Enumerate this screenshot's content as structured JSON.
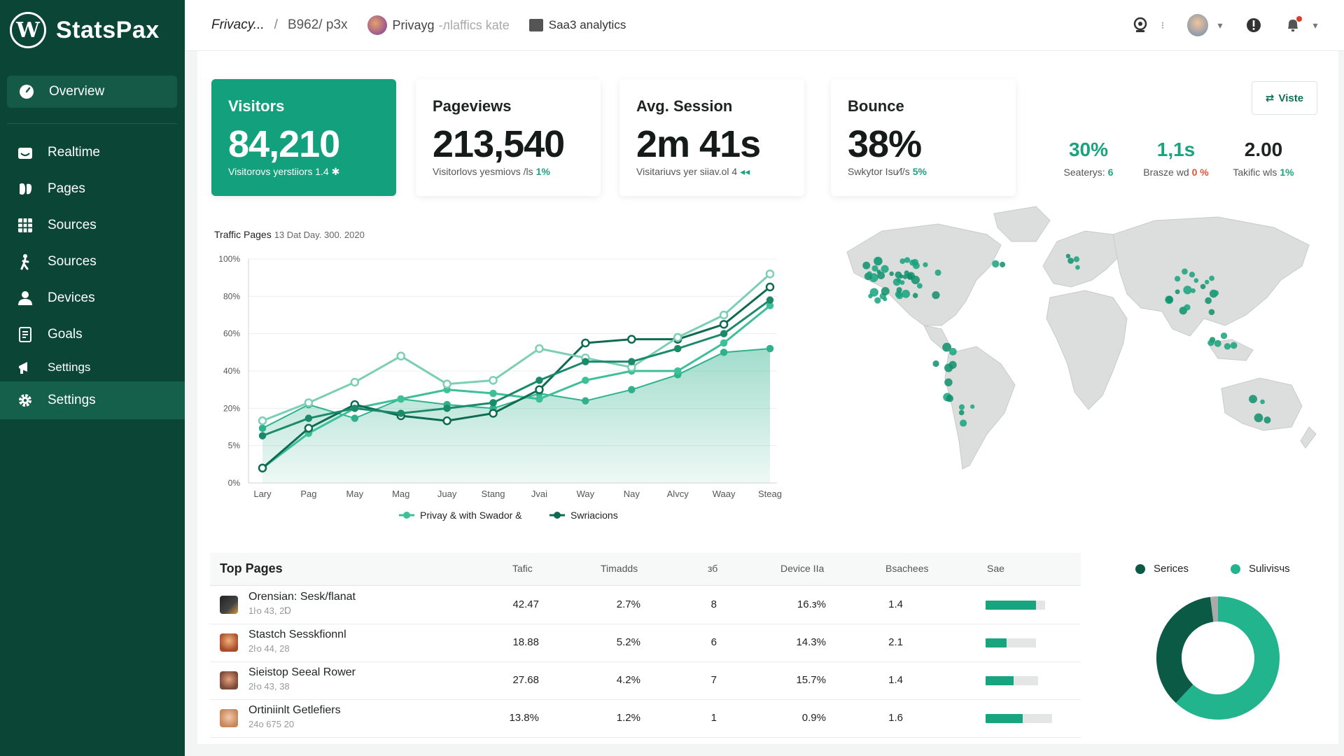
{
  "brand": {
    "name": "StatsPax",
    "logo_glyph": "W"
  },
  "sidebar": {
    "overview": {
      "label": "Overview",
      "icon": "gauge-icon"
    },
    "items": [
      {
        "label": "Realtime",
        "icon": "realtime-icon"
      },
      {
        "label": "Pages",
        "icon": "pages-icon"
      },
      {
        "label": "Sources",
        "icon": "grid-icon"
      },
      {
        "label": "Sources",
        "icon": "person-walk-icon"
      },
      {
        "label": "Devices",
        "icon": "user-icon"
      },
      {
        "label": "Goals",
        "icon": "document-icon"
      },
      {
        "label": "Settings",
        "icon": "megaphone-icon"
      },
      {
        "label": "Settings",
        "icon": "gear-icon"
      }
    ]
  },
  "topbar": {
    "crumb_1": "Frivacy...",
    "separator": "/",
    "crumb_2": "В962/ p3x",
    "site_name": "Privayg",
    "site_muted": "-лlaffics kate",
    "analytics_label": "Saa3 analytics"
  },
  "cards": [
    {
      "title": "Visitors",
      "value": "84,210",
      "sub": "Visitorovs yerstiiors 1.4",
      "delta": "✱"
    },
    {
      "title": "Pageviews",
      "value": "213,540",
      "sub": "Visitorlovs yesmiovs /ls",
      "delta": "1%"
    },
    {
      "title": "Avg. Session",
      "value": "2m 41s",
      "sub": "Visitariuvs yer siiav.ol 4",
      "delta": "◂◂"
    },
    {
      "title": "Bounce",
      "value": "38%",
      "sub": "Swkytor Isu⁄ſ/s",
      "delta": "5%"
    }
  ],
  "mini_stats": [
    {
      "value": "30%",
      "label": "Seaterys:",
      "delta": "6",
      "value_color": "#1aa37f",
      "delta_color": "#1aa37f"
    },
    {
      "value": "1,1s",
      "label": "Brasze wd",
      "delta": "0 %",
      "value_color": "#1aa37f",
      "delta_color": "#e0533a"
    },
    {
      "value": "2.00",
      "label": "Takific wls",
      "delta": "1%",
      "value_color": "#1d2421",
      "delta_color": "#1aa37f"
    }
  ],
  "view_button": {
    "label": "Viste",
    "icon": "swap-icon"
  },
  "chart_header": {
    "title": "Traffic Pages",
    "subtitle": "13 Dat Day. 300. 2020"
  },
  "chart_data": {
    "type": "line",
    "categories": [
      "Lary",
      "Pag",
      "May",
      "Mag",
      "Juay",
      "Stang",
      "Jvai",
      "Way",
      "Nay",
      "Alvcy",
      "Waay",
      "Steag"
    ],
    "y_ticks": [
      "0%",
      "5%",
      "20%",
      "40%",
      "60%",
      "80%",
      "100%"
    ],
    "series": [
      {
        "name": "Privay & with Swador &",
        "color": "#3dbf98",
        "values": [
          2,
          10,
          20,
          25,
          30,
          28,
          25,
          35,
          40,
          40,
          55,
          75
        ]
      },
      {
        "name": "Swriacions",
        "color": "#0e6b52",
        "values": [
          2,
          12,
          22,
          17,
          15,
          18,
          30,
          55,
          57,
          57,
          65,
          85
        ]
      },
      {
        "series_role": "area",
        "color": "#2fb28c",
        "values": [
          12,
          22,
          16,
          25,
          22,
          20,
          28,
          24,
          30,
          38,
          50,
          52
        ]
      },
      {
        "series_role": "upper",
        "color": "#7ccfb5",
        "values": [
          15,
          23,
          34,
          48,
          33,
          35,
          52,
          47,
          42,
          58,
          70,
          92
        ]
      },
      {
        "series_role": "mid",
        "color": "#1b8a6b",
        "values": [
          9,
          16,
          20,
          18,
          20,
          23,
          35,
          45,
          45,
          52,
          60,
          78
        ]
      }
    ]
  },
  "legend": [
    {
      "label": "Privay & with Swador &",
      "color": "#3dbf98"
    },
    {
      "label": "Swriacions",
      "color": "#0e6b52"
    }
  ],
  "map": {
    "icon": "world-map-icon",
    "land_color": "#dcdedd",
    "dot_color": "#16a37e"
  },
  "table": {
    "title": "Top Pages",
    "columns": [
      "Tafic",
      "Timadds",
      "зб",
      "Device IIa",
      "Bsachees",
      "Sae"
    ],
    "rows": [
      {
        "name": "Orensian: Sesk/flanat",
        "sub": "1ŀо 43, 2Ɒ",
        "c1": "42.47",
        "c2": "2.7%",
        "c3": "8",
        "c4": "16.з%",
        "c5": "1.4",
        "bar": 0.72,
        "track": 0.85
      },
      {
        "name": "Stastch Sesskfionnl",
        "sub": "2ŀо 44, 28",
        "c1": "18.88",
        "c2": "5.2%",
        "c3": "6",
        "c4": "14.3%",
        "c5": "2.1",
        "bar": 0.3,
        "track": 0.72
      },
      {
        "name": "Sieistop Seeal Rower",
        "sub": "2ŀо 43, 38",
        "c1": "27.68",
        "c2": "4.2%",
        "c3": "7",
        "c4": "15.7%",
        "c5": "1.4",
        "bar": 0.4,
        "track": 0.75
      },
      {
        "name": "Ortiniinlt Getlefiers",
        "sub": "24о 675 20",
        "c1": "13.8%",
        "c2": "1.2%",
        "c3": "1",
        "c4": "0.9%",
        "c5": "1.6",
        "bar": 0.53,
        "track": 0.95
      }
    ]
  },
  "donut": {
    "legend": [
      {
        "label": "Serices",
        "color": "#0b5a45"
      },
      {
        "label": "Sulivisчs",
        "color": "#22b48d"
      }
    ],
    "values": [
      0.62,
      0.36,
      0.02
    ],
    "colors": [
      "#22b48d",
      "#0b5a45",
      "#a9aaa9"
    ]
  }
}
